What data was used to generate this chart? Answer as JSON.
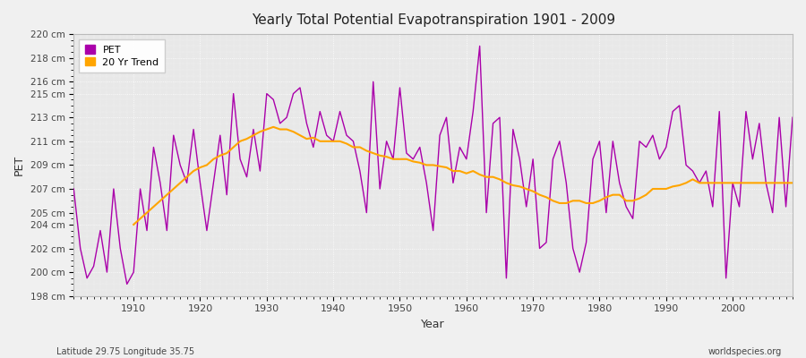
{
  "title": "Yearly Total Potential Evapotranspiration 1901 - 2009",
  "xlabel": "Year",
  "ylabel": "PET",
  "subtitle_left": "Latitude 29.75 Longitude 35.75",
  "subtitle_right": "worldspecies.org",
  "ylim": [
    198,
    220
  ],
  "yticks": [
    198,
    200,
    202,
    204,
    205,
    207,
    209,
    211,
    213,
    215,
    216,
    218,
    220
  ],
  "ytick_labels": [
    "198 cm",
    "200 cm",
    "202 cm",
    "204 cm",
    "205 cm",
    "207 cm",
    "209 cm",
    "211 cm",
    "213 cm",
    "215 cm",
    "216 cm",
    "218 cm",
    "220 cm"
  ],
  "pet_color": "#AA00AA",
  "trend_color": "#FFA500",
  "bg_color": "#F0F0F0",
  "plot_bg_color": "#E8E8E8",
  "grid_color": "#FFFFFF",
  "legend_pet": "PET",
  "legend_trend": "20 Yr Trend",
  "years": [
    1901,
    1902,
    1903,
    1904,
    1905,
    1906,
    1907,
    1908,
    1909,
    1910,
    1911,
    1912,
    1913,
    1914,
    1915,
    1916,
    1917,
    1918,
    1919,
    1920,
    1921,
    1922,
    1923,
    1924,
    1925,
    1926,
    1927,
    1928,
    1929,
    1930,
    1931,
    1932,
    1933,
    1934,
    1935,
    1936,
    1937,
    1938,
    1939,
    1940,
    1941,
    1942,
    1943,
    1944,
    1945,
    1946,
    1947,
    1948,
    1949,
    1950,
    1951,
    1952,
    1953,
    1954,
    1955,
    1956,
    1957,
    1958,
    1959,
    1960,
    1961,
    1962,
    1963,
    1964,
    1965,
    1966,
    1967,
    1968,
    1969,
    1970,
    1971,
    1972,
    1973,
    1974,
    1975,
    1976,
    1977,
    1978,
    1979,
    1980,
    1981,
    1982,
    1983,
    1984,
    1985,
    1986,
    1987,
    1988,
    1989,
    1990,
    1991,
    1992,
    1993,
    1994,
    1995,
    1996,
    1997,
    1998,
    1999,
    2000,
    2001,
    2002,
    2003,
    2004,
    2005,
    2006,
    2007,
    2008,
    2009
  ],
  "pet_values": [
    207.0,
    202.0,
    199.5,
    200.5,
    203.5,
    200.0,
    207.0,
    202.0,
    199.0,
    200.0,
    207.0,
    203.5,
    210.5,
    207.5,
    203.5,
    211.5,
    209.0,
    207.5,
    212.0,
    207.5,
    203.5,
    207.5,
    211.5,
    206.5,
    215.0,
    209.5,
    208.0,
    212.0,
    208.5,
    215.0,
    214.5,
    212.5,
    213.0,
    215.0,
    215.5,
    212.5,
    210.5,
    213.5,
    211.5,
    211.0,
    213.5,
    211.5,
    211.0,
    208.5,
    205.0,
    216.0,
    207.0,
    211.0,
    209.5,
    215.5,
    210.0,
    209.5,
    210.5,
    207.5,
    203.5,
    211.5,
    213.0,
    207.5,
    210.5,
    209.5,
    213.5,
    219.0,
    205.0,
    212.5,
    213.0,
    199.5,
    212.0,
    209.5,
    205.5,
    209.5,
    202.0,
    202.5,
    209.5,
    211.0,
    207.5,
    202.0,
    200.0,
    202.5,
    209.5,
    211.0,
    205.0,
    211.0,
    207.5,
    205.5,
    204.5,
    211.0,
    210.5,
    211.5,
    209.5,
    210.5,
    213.5,
    214.0,
    209.0,
    208.5,
    207.5,
    208.5,
    205.5,
    213.5,
    199.5,
    207.5,
    205.5,
    213.5,
    209.5,
    212.5,
    207.5,
    205.0,
    213.0,
    205.5,
    213.0
  ],
  "trend_years": [
    1910,
    1911,
    1912,
    1913,
    1914,
    1915,
    1916,
    1917,
    1918,
    1919,
    1920,
    1921,
    1922,
    1923,
    1924,
    1925,
    1926,
    1927,
    1928,
    1929,
    1930,
    1931,
    1932,
    1933,
    1934,
    1935,
    1936,
    1937,
    1938,
    1939,
    1940,
    1941,
    1942,
    1943,
    1944,
    1945,
    1946,
    1947,
    1948,
    1949,
    1950,
    1951,
    1952,
    1953,
    1954,
    1955,
    1956,
    1957,
    1958,
    1959,
    1960,
    1961,
    1962,
    1963,
    1964,
    1965,
    1966,
    1967,
    1968,
    1969,
    1970,
    1971,
    1972,
    1973,
    1974,
    1975,
    1976,
    1977,
    1978,
    1979,
    1980,
    1981,
    1982,
    1983,
    1984,
    1985,
    1986,
    1987,
    1988,
    1989,
    1990,
    1991,
    1992,
    1993,
    1994,
    1995,
    1996,
    1997,
    1998,
    1999,
    2000,
    2001,
    2002,
    2003,
    2004,
    2005,
    2006,
    2007,
    2008,
    2009
  ],
  "trend_values": [
    204.0,
    204.5,
    205.0,
    205.5,
    206.0,
    206.5,
    207.0,
    207.5,
    208.0,
    208.5,
    208.8,
    209.0,
    209.5,
    209.8,
    210.0,
    210.5,
    211.0,
    211.2,
    211.5,
    211.8,
    212.0,
    212.2,
    212.0,
    212.0,
    211.8,
    211.5,
    211.2,
    211.3,
    211.0,
    211.0,
    211.0,
    211.0,
    210.8,
    210.5,
    210.5,
    210.2,
    210.0,
    209.8,
    209.7,
    209.5,
    209.5,
    209.5,
    209.3,
    209.2,
    209.0,
    209.0,
    208.9,
    208.8,
    208.5,
    208.5,
    208.3,
    208.5,
    208.2,
    208.0,
    208.0,
    207.8,
    207.5,
    207.3,
    207.2,
    207.0,
    206.8,
    206.5,
    206.3,
    206.0,
    205.8,
    205.8,
    206.0,
    206.0,
    205.8,
    205.8,
    206.0,
    206.3,
    206.5,
    206.5,
    206.0,
    206.0,
    206.2,
    206.5,
    207.0,
    207.0,
    207.0,
    207.2,
    207.3,
    207.5,
    207.8,
    207.5,
    207.5,
    207.5,
    207.5,
    207.5,
    207.5,
    207.5,
    207.5,
    207.5,
    207.5,
    207.5,
    207.5,
    207.5,
    207.5,
    207.5
  ]
}
